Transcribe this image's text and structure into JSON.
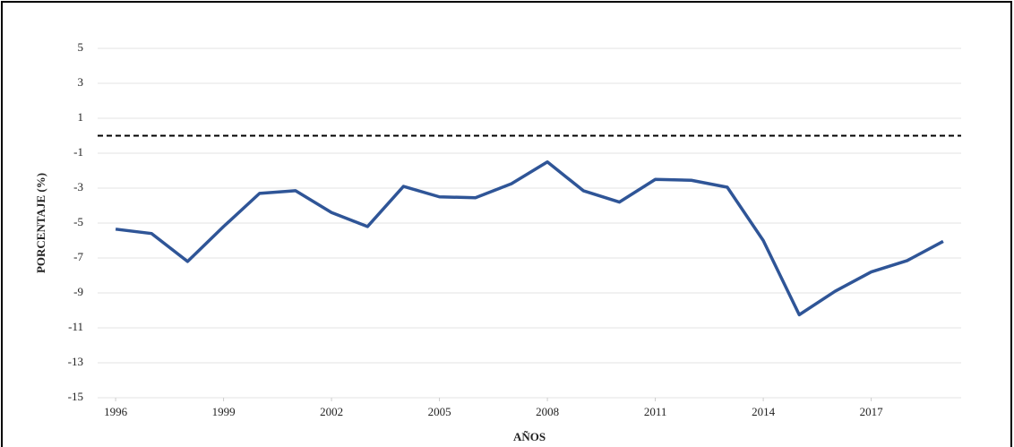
{
  "chart_data": {
    "type": "line",
    "x_label": "AÑOS",
    "y_label": "PORCENTAJE (%)",
    "x": [
      1996,
      1997,
      1998,
      1999,
      2000,
      2001,
      2002,
      2003,
      2004,
      2005,
      2006,
      2007,
      2008,
      2009,
      2010,
      2011,
      2012,
      2013,
      2014,
      2015,
      2016,
      2017,
      2018,
      2019
    ],
    "series": [
      {
        "color": "#2f5597",
        "values": [
          -5.35,
          -5.6,
          -7.2,
          -5.2,
          -3.3,
          -3.15,
          -4.4,
          -5.2,
          -2.9,
          -3.5,
          -3.55,
          -2.75,
          -1.5,
          -3.15,
          -3.8,
          -2.5,
          -2.55,
          -2.95,
          -6.0,
          -10.25,
          -8.9,
          -7.8,
          -7.15,
          -6.05
        ]
      }
    ],
    "xlim": [
      1995.5,
      2019.5
    ],
    "xticks": [
      1996,
      1999,
      2002,
      2005,
      2008,
      2011,
      2014,
      2017
    ],
    "ylim": [
      -15,
      5
    ],
    "yticks": [
      -15,
      -13,
      -11,
      -9,
      -7,
      -5,
      -3,
      -1,
      1,
      3,
      5
    ],
    "reference_line": 0,
    "grid": true
  }
}
